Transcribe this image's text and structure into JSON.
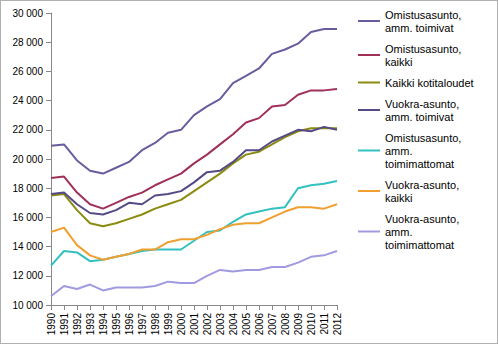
{
  "chart_data": {
    "type": "line",
    "categories": [
      "1990",
      "1991",
      "1992",
      "1993",
      "1994",
      "1995",
      "1996",
      "1997",
      "1998",
      "1999",
      "2000",
      "2001",
      "2002",
      "2003",
      "2004",
      "2005",
      "2006",
      "2007",
      "2008",
      "2009",
      "2010",
      "2011",
      "2012"
    ],
    "series": [
      {
        "name": "Omistusasunto, amm. toimivat",
        "color": "#6a5c9e",
        "values": [
          20900,
          21000,
          19900,
          19200,
          19000,
          19400,
          19800,
          20600,
          21100,
          21800,
          22000,
          23000,
          23600,
          24100,
          25200,
          25700,
          26200,
          27200,
          27500,
          27900,
          28700,
          28900,
          28900
        ]
      },
      {
        "name": "Omistusasunto, kaikki",
        "color": "#a0305a",
        "values": [
          18700,
          18800,
          17700,
          16900,
          16600,
          17000,
          17400,
          17700,
          18200,
          18600,
          19000,
          19700,
          20300,
          21000,
          21700,
          22500,
          22800,
          23600,
          23700,
          24400,
          24700,
          24700,
          24800
        ]
      },
      {
        "name": "Kaikki kotitaloudet",
        "color": "#8b8b10",
        "values": [
          17500,
          17600,
          16500,
          15600,
          15400,
          15600,
          15900,
          16200,
          16600,
          16900,
          17200,
          17800,
          18400,
          19000,
          19700,
          20300,
          20500,
          21000,
          21500,
          21900,
          22100,
          22100,
          22100
        ]
      },
      {
        "name": "Vuokra-asunto, amm. toimivat",
        "color": "#554a86",
        "values": [
          17600,
          17700,
          16900,
          16300,
          16200,
          16500,
          17000,
          16900,
          17500,
          17600,
          17800,
          18400,
          19100,
          19200,
          19800,
          20600,
          20600,
          21200,
          21600,
          22000,
          21900,
          22200,
          22000
        ]
      },
      {
        "name": "Omistusasunto, amm. toimimattomat",
        "color": "#33c0c0",
        "values": [
          12700,
          13700,
          13600,
          13000,
          13100,
          13300,
          13500,
          13700,
          13800,
          13800,
          13800,
          14400,
          15000,
          15100,
          15700,
          16200,
          16400,
          16600,
          16700,
          18000,
          18200,
          18300,
          18500
        ]
      },
      {
        "name": "Vuokra-asunto, kaikki",
        "color": "#f0a030",
        "values": [
          15000,
          15300,
          14100,
          13400,
          13100,
          13300,
          13500,
          13800,
          13800,
          14300,
          14500,
          14500,
          14800,
          15200,
          15500,
          15600,
          15600,
          16000,
          16400,
          16700,
          16700,
          16600,
          16900
        ]
      },
      {
        "name": "Vuokra-asunto, amm. toimimattomat",
        "color": "#a09ae0",
        "values": [
          10600,
          11300,
          11100,
          11400,
          11000,
          11200,
          11200,
          11200,
          11300,
          11600,
          11500,
          11500,
          12000,
          12400,
          12300,
          12400,
          12400,
          12600,
          12600,
          12900,
          13300,
          13400,
          13700
        ]
      }
    ],
    "ylim": [
      10000,
      30000
    ],
    "yticks": [
      {
        "value": 10000,
        "label": "10 000"
      },
      {
        "value": 12000,
        "label": "12 000"
      },
      {
        "value": 14000,
        "label": "14 000"
      },
      {
        "value": 16000,
        "label": "16 000"
      },
      {
        "value": 18000,
        "label": "18 000"
      },
      {
        "value": 20000,
        "label": "20 000"
      },
      {
        "value": 22000,
        "label": "22 000"
      },
      {
        "value": 24000,
        "label": "24 000"
      },
      {
        "value": 26000,
        "label": "26 000"
      },
      {
        "value": 28000,
        "label": "28 000"
      },
      {
        "value": 30000,
        "label": "30 000"
      }
    ],
    "grid": false,
    "legend": "right"
  }
}
